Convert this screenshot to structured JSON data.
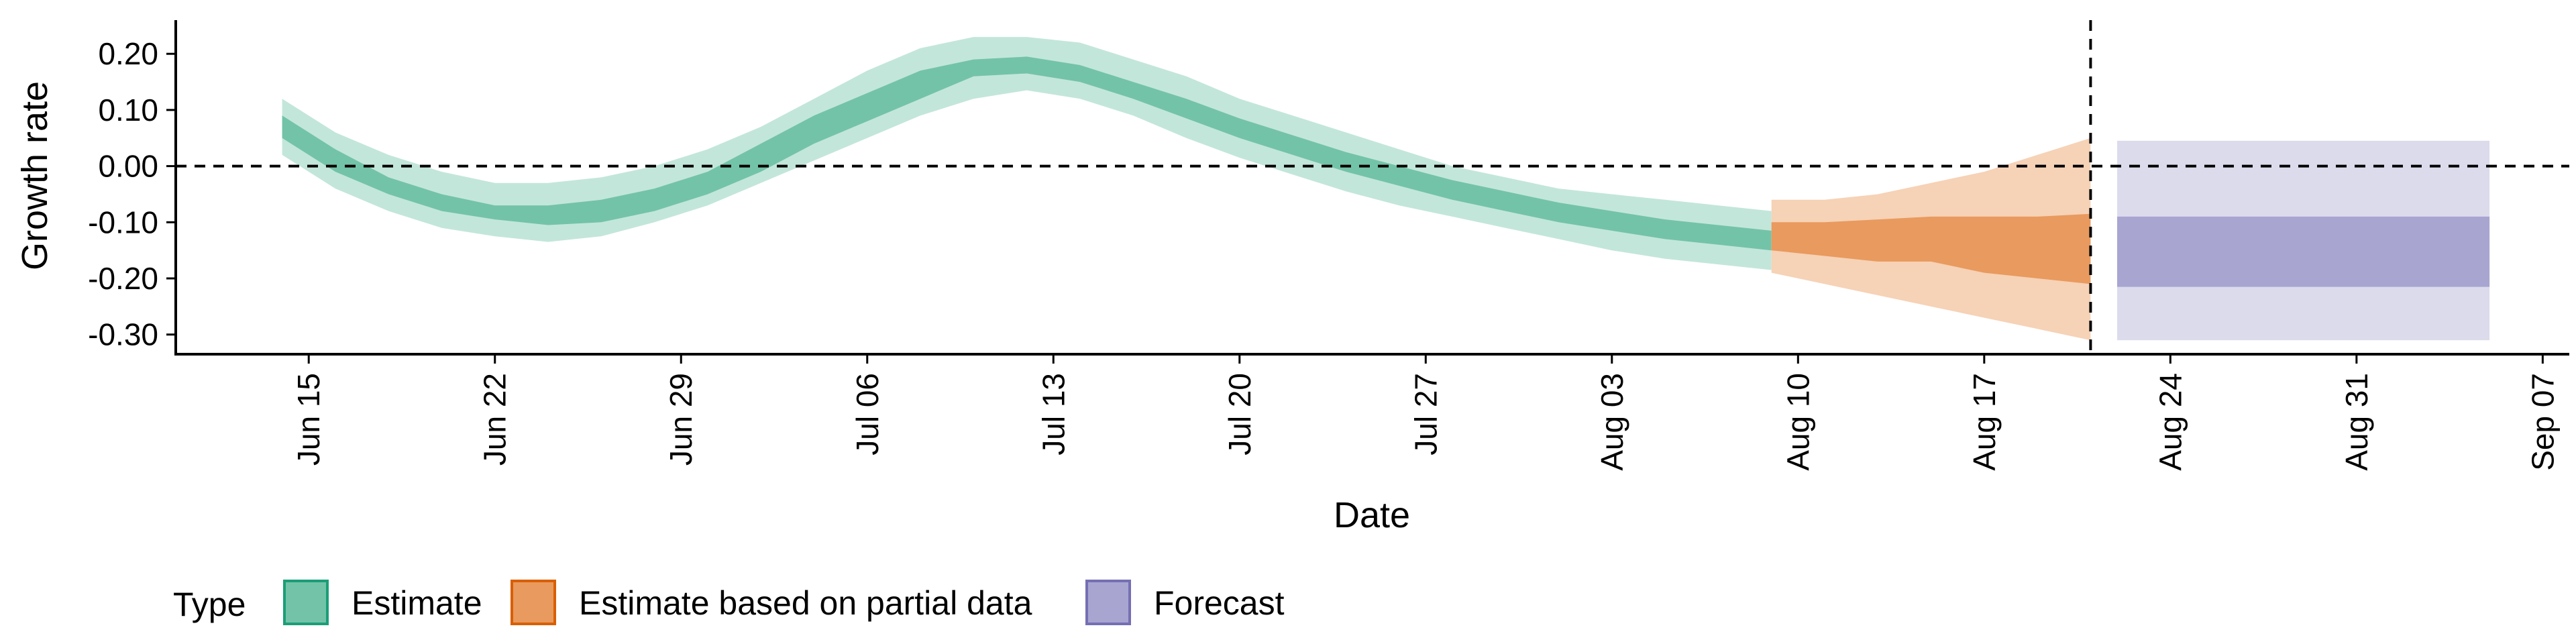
{
  "chart_data": {
    "type": "area",
    "xlabel": "Date",
    "ylabel": "Growth rate",
    "x_range": [
      "2021-06-10",
      "2021-09-08"
    ],
    "ylim": [
      -0.335,
      0.26
    ],
    "y_ticks": [
      0.2,
      0.1,
      0.0,
      -0.1,
      -0.2,
      -0.3
    ],
    "y_tick_labels": [
      "0.20",
      "0.10",
      "0.00",
      "-0.10",
      "-0.20",
      "-0.30"
    ],
    "x_ticks": [
      "2021-06-15",
      "2021-06-22",
      "2021-06-29",
      "2021-07-06",
      "2021-07-13",
      "2021-07-20",
      "2021-07-27",
      "2021-08-03",
      "2021-08-10",
      "2021-08-17",
      "2021-08-24",
      "2021-08-31",
      "2021-09-07"
    ],
    "x_tick_labels": [
      "Jun 15",
      "Jun 22",
      "Jun 29",
      "Jul 06",
      "Jul 13",
      "Jul 20",
      "Jul 27",
      "Aug 03",
      "Aug 10",
      "Aug 17",
      "Aug 24",
      "Aug 31",
      "Sep 07"
    ],
    "hline_y": 0,
    "vline_x": "2021-08-21",
    "grid": false,
    "legend": {
      "title": "Type",
      "position": "bottom-left",
      "entries": [
        {
          "label": "Estimate",
          "fill": "#73c3a8",
          "stroke": "#1b9e77"
        },
        {
          "label": "Estimate based on partial data",
          "fill": "#e99a5e",
          "stroke": "#d95f02"
        },
        {
          "label": "Forecast",
          "fill": "#a8a5d1",
          "stroke": "#7570b3"
        }
      ]
    },
    "series": [
      {
        "name": "Estimate",
        "color": "#1b9e77",
        "inner_color": "#73c3a8",
        "outer_color": "#c3e6da",
        "x": [
          "2021-06-14",
          "2021-06-16",
          "2021-06-18",
          "2021-06-20",
          "2021-06-22",
          "2021-06-24",
          "2021-06-26",
          "2021-06-28",
          "2021-06-30",
          "2021-07-02",
          "2021-07-04",
          "2021-07-06",
          "2021-07-08",
          "2021-07-10",
          "2021-07-12",
          "2021-07-14",
          "2021-07-16",
          "2021-07-18",
          "2021-07-20",
          "2021-07-22",
          "2021-07-24",
          "2021-07-26",
          "2021-07-28",
          "2021-07-30",
          "2021-08-01",
          "2021-08-03",
          "2021-08-05",
          "2021-08-07",
          "2021-08-09"
        ],
        "outer_upper": [
          0.12,
          0.06,
          0.02,
          -0.01,
          -0.03,
          -0.03,
          -0.02,
          0.0,
          0.03,
          0.07,
          0.12,
          0.17,
          0.21,
          0.23,
          0.23,
          0.22,
          0.19,
          0.16,
          0.12,
          0.09,
          0.06,
          0.03,
          0.0,
          -0.02,
          -0.04,
          -0.05,
          -0.06,
          -0.07,
          -0.08
        ],
        "inner_upper": [
          0.09,
          0.03,
          -0.02,
          -0.05,
          -0.07,
          -0.07,
          -0.06,
          -0.04,
          -0.01,
          0.04,
          0.09,
          0.13,
          0.17,
          0.19,
          0.195,
          0.18,
          0.15,
          0.12,
          0.085,
          0.055,
          0.025,
          0.0,
          -0.025,
          -0.045,
          -0.065,
          -0.08,
          -0.095,
          -0.105,
          -0.115
        ],
        "inner_lower": [
          0.05,
          -0.01,
          -0.05,
          -0.08,
          -0.095,
          -0.105,
          -0.1,
          -0.08,
          -0.05,
          -0.01,
          0.04,
          0.08,
          0.12,
          0.16,
          0.165,
          0.15,
          0.12,
          0.085,
          0.05,
          0.02,
          -0.01,
          -0.035,
          -0.06,
          -0.08,
          -0.1,
          -0.115,
          -0.13,
          -0.14,
          -0.15
        ],
        "outer_lower": [
          0.02,
          -0.04,
          -0.08,
          -0.11,
          -0.125,
          -0.135,
          -0.125,
          -0.1,
          -0.07,
          -0.03,
          0.01,
          0.05,
          0.09,
          0.12,
          0.135,
          0.12,
          0.09,
          0.05,
          0.015,
          -0.015,
          -0.045,
          -0.07,
          -0.09,
          -0.11,
          -0.13,
          -0.15,
          -0.165,
          -0.175,
          -0.185
        ]
      },
      {
        "name": "Estimate based on partial data",
        "color": "#d95f02",
        "inner_color": "#e99a5e",
        "outer_color": "#f6d2b6",
        "x": [
          "2021-08-09",
          "2021-08-11",
          "2021-08-13",
          "2021-08-15",
          "2021-08-17",
          "2021-08-19",
          "2021-08-21"
        ],
        "outer_upper": [
          -0.06,
          -0.06,
          -0.05,
          -0.03,
          -0.01,
          0.02,
          0.05
        ],
        "inner_upper": [
          -0.1,
          -0.1,
          -0.095,
          -0.09,
          -0.09,
          -0.09,
          -0.085
        ],
        "inner_lower": [
          -0.15,
          -0.16,
          -0.17,
          -0.17,
          -0.19,
          -0.2,
          -0.21
        ],
        "outer_lower": [
          -0.19,
          -0.21,
          -0.23,
          -0.25,
          -0.27,
          -0.29,
          -0.31
        ]
      },
      {
        "name": "Forecast",
        "color": "#7570b3",
        "inner_color": "#a8a5d1",
        "outer_color": "#dcdbec",
        "x": [
          "2021-08-22",
          "2021-09-05"
        ],
        "outer_upper": [
          0.045,
          0.045
        ],
        "inner_upper": [
          -0.09,
          -0.09
        ],
        "inner_lower": [
          -0.215,
          -0.215
        ],
        "outer_lower": [
          -0.31,
          -0.31
        ]
      }
    ]
  }
}
